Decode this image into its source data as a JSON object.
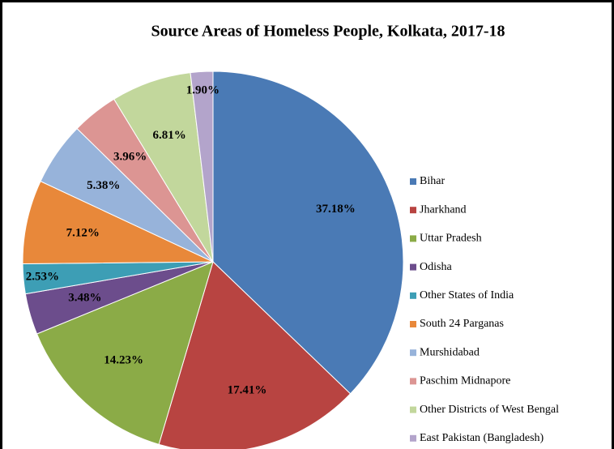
{
  "chart_data": {
    "type": "pie",
    "title": "Source Areas of Homeless People, Kolkata, 2017-18",
    "categories": [
      "Bihar",
      "Jharkhand",
      "Uttar Pradesh",
      "Odisha",
      "Other States of India",
      "South 24 Parganas",
      "Murshidabad",
      "Paschim Midnapore",
      "Other Districts of West Bengal",
      "East Pakistan (Bangladesh)"
    ],
    "values": [
      37.18,
      17.41,
      14.23,
      3.48,
      2.53,
      7.12,
      5.38,
      3.96,
      6.81,
      1.9
    ],
    "value_labels": [
      "37.18%",
      "17.41%",
      "14.23%",
      "3.48%",
      "2.53%",
      "7.12%",
      "5.38%",
      "3.96%",
      "6.81%",
      "1.90%"
    ],
    "colors": [
      "#4a7ab5",
      "#b84441",
      "#8bab47",
      "#6c4d8c",
      "#3d9eb5",
      "#e8883a",
      "#97b3da",
      "#dc9593",
      "#c2d79c",
      "#b3a4cb"
    ],
    "legend": "right"
  }
}
